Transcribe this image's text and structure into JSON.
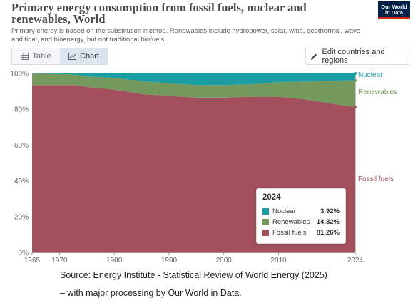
{
  "header": {
    "title": "Primary energy consumption from fossil fuels, nuclear and renewables, World",
    "subtitle_link1": "Primary energy",
    "subtitle_mid": " is based on the ",
    "subtitle_link2": "substitution method",
    "subtitle_rest": ". Renewables include hydropower, solar, wind, geothermal, wave and tidal, and bioenergy, but not traditional biofuels.",
    "logo_line1": "Our World",
    "logo_line2": "in Data"
  },
  "tabs": [
    {
      "label": "Table",
      "icon": "table-icon",
      "active": false
    },
    {
      "label": "Chart",
      "icon": "chart-icon",
      "active": true
    }
  ],
  "edit_button": {
    "label": "Edit countries and regions",
    "icon": "pencil-icon"
  },
  "tooltip": {
    "title": "2024",
    "rows": [
      {
        "name": "Nuclear",
        "value": "3.92%",
        "color": "#1a9ea3"
      },
      {
        "name": "Renewables",
        "value": "14.82%",
        "color": "#74995d"
      },
      {
        "name": "Fossil fuels",
        "value": "81.26%",
        "color": "#a2505b"
      }
    ]
  },
  "source": {
    "line1": "Source: Energy Institute - Statistical Review of World Energy (2025)",
    "line2": "– with major processing by Our World in Data."
  },
  "chart_data": {
    "type": "area",
    "stacked": true,
    "x": [
      1965,
      1970,
      1973,
      1975,
      1980,
      1985,
      1990,
      1995,
      2000,
      2005,
      2010,
      2015,
      2020,
      2024
    ],
    "series": [
      {
        "name": "Fossil fuels",
        "color": "#a2505b",
        "values": [
          93.5,
          93.5,
          93.5,
          92.5,
          91.0,
          88.5,
          87.5,
          86.5,
          86.5,
          87.0,
          87.0,
          85.5,
          83.0,
          81.26
        ]
      },
      {
        "name": "Renewables",
        "color": "#74995d",
        "values": [
          6.4,
          6.2,
          5.8,
          5.9,
          6.5,
          7.2,
          7.0,
          7.1,
          7.0,
          6.9,
          8.2,
          10.0,
          13.0,
          14.82
        ]
      },
      {
        "name": "Nuclear",
        "color": "#1a9ea3",
        "values": [
          0.1,
          0.3,
          0.7,
          1.6,
          2.5,
          4.3,
          5.5,
          6.4,
          6.5,
          6.1,
          4.8,
          4.5,
          4.0,
          3.92
        ]
      }
    ],
    "ylim": [
      0,
      100
    ],
    "y_ticks": [
      "0%",
      "20%",
      "40%",
      "60%",
      "80%",
      "100%"
    ],
    "y_tick_values": [
      0,
      20,
      40,
      60,
      80,
      100
    ],
    "x_ticks": [
      1965,
      1970,
      1980,
      1990,
      2000,
      2010,
      2024
    ],
    "xlim": [
      1965,
      2024
    ],
    "grid": "horizontal dashed",
    "legend": "labels at right end of series"
  }
}
